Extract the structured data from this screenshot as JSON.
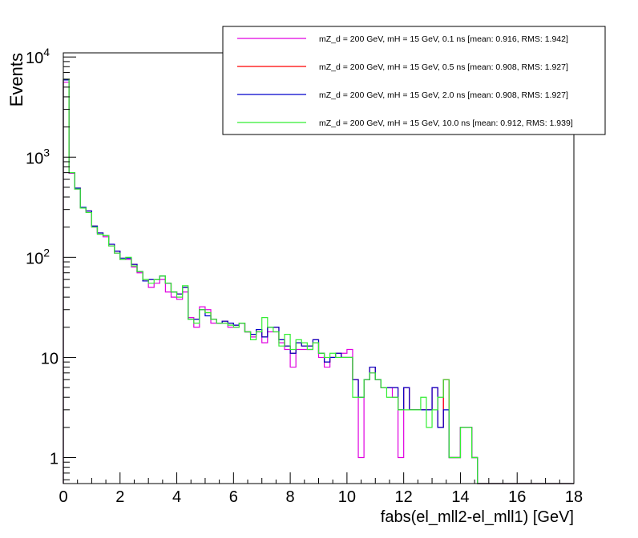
{
  "chart_data": {
    "type": "line",
    "title": "",
    "xlabel": "fabs(el_mll2-el_mll1) [GeV]",
    "ylabel": "Events",
    "xlim": [
      0,
      18
    ],
    "ylim": [
      0.55,
      11000
    ],
    "yscale": "log",
    "grid": false,
    "legend_position": "top-right",
    "bin_width": 0.2,
    "x_ticks": [
      "0",
      "2",
      "4",
      "6",
      "8",
      "10",
      "12",
      "14",
      "16",
      "18"
    ],
    "y_ticks": [
      {
        "value": 1,
        "base": "1",
        "exp": ""
      },
      {
        "value": 10,
        "base": "10",
        "exp": ""
      },
      {
        "value": 100,
        "base": "10",
        "exp": "2"
      },
      {
        "value": 1000,
        "base": "10",
        "exp": "3"
      },
      {
        "value": 10000,
        "base": "10",
        "exp": "4"
      }
    ],
    "series": [
      {
        "name": "mZ_d = 200 GeV, mH = 15 GeV, 0.1 ns [mean: 0.916, RMS: 1.942]",
        "color": "#e000e0",
        "values": [
          5600,
          690,
          480,
          310,
          280,
          200,
          170,
          160,
          130,
          110,
          95,
          95,
          80,
          70,
          60,
          50,
          55,
          60,
          45,
          40,
          38,
          45,
          25,
          20,
          32,
          30,
          22,
          22,
          22,
          20,
          20,
          22,
          18,
          16,
          18,
          14,
          18,
          18,
          14,
          12,
          8,
          12,
          12,
          12,
          14,
          10,
          8,
          10,
          10,
          11,
          12,
          6,
          1,
          6,
          7,
          6,
          5,
          5,
          4,
          1,
          5,
          3,
          3,
          3,
          3,
          5,
          2,
          6,
          1,
          1,
          2,
          2,
          1,
          0,
          0,
          0,
          0,
          0,
          0,
          0,
          0,
          0,
          0,
          0,
          0,
          0,
          0,
          0,
          0,
          0
        ]
      },
      {
        "name": "mZ_d = 200 GeV, mH = 15 GeV, 0.5 ns [mean: 0.908, RMS: 1.927]",
        "color": "#ff0000",
        "values": [
          5900,
          700,
          490,
          310,
          290,
          205,
          175,
          165,
          135,
          115,
          98,
          98,
          85,
          72,
          58,
          60,
          60,
          65,
          55,
          45,
          43,
          50,
          24,
          24,
          30,
          28,
          24,
          22,
          23,
          22,
          21,
          22,
          18,
          17,
          19,
          16,
          20,
          20,
          15,
          13,
          11,
          14,
          13,
          13,
          15,
          11,
          9,
          10,
          11,
          10,
          10,
          6,
          4,
          6,
          8,
          6,
          5,
          5,
          5,
          3,
          5,
          3,
          3,
          3,
          3,
          5,
          2,
          6,
          1,
          1,
          2,
          2,
          1,
          0,
          0,
          0,
          0,
          0,
          0,
          0,
          0,
          0,
          0,
          0,
          0,
          0,
          0,
          0,
          0,
          0
        ]
      },
      {
        "name": "mZ_d = 200 GeV, mH = 15 GeV, 2.0 ns [mean: 0.908, RMS: 1.927]",
        "color": "#0000cc",
        "values": [
          5900,
          700,
          490,
          315,
          290,
          205,
          175,
          165,
          135,
          115,
          98,
          98,
          85,
          72,
          58,
          60,
          60,
          65,
          55,
          45,
          43,
          50,
          24,
          24,
          30,
          26,
          24,
          22,
          23,
          22,
          21,
          22,
          18,
          17,
          19,
          16,
          20,
          20,
          15,
          13,
          11,
          14,
          13,
          13,
          15,
          11,
          9,
          10,
          11,
          10,
          10,
          6,
          4,
          6,
          8,
          6,
          5,
          5,
          5,
          3,
          5,
          3,
          3,
          3,
          3,
          5,
          2,
          3,
          1,
          1,
          2,
          2,
          1,
          0,
          0,
          0,
          0,
          0,
          0,
          0,
          0,
          0,
          0,
          0,
          0,
          0,
          0,
          0,
          0,
          0
        ]
      },
      {
        "name": "mZ_d = 200 GeV, mH = 15 GeV, 10.0 ns [mean: 0.912, RMS: 1.939]",
        "color": "#33ee33",
        "values": [
          6000,
          700,
          480,
          310,
          280,
          200,
          170,
          165,
          130,
          110,
          95,
          100,
          82,
          72,
          60,
          55,
          60,
          65,
          55,
          45,
          40,
          52,
          24,
          22,
          30,
          28,
          24,
          22,
          22,
          21,
          20,
          22,
          18,
          15,
          18,
          25,
          20,
          18,
          13,
          17,
          12,
          15,
          14,
          12,
          14,
          11,
          10,
          11,
          10,
          10,
          10,
          4,
          4,
          6,
          7,
          6,
          5,
          4,
          4,
          3,
          3,
          3,
          3,
          4,
          2,
          3,
          4,
          6,
          1,
          1,
          2,
          2,
          1,
          0,
          0,
          0,
          0,
          0,
          0,
          0,
          0,
          0,
          0,
          0,
          0,
          0,
          0,
          0,
          0,
          0
        ]
      }
    ]
  }
}
